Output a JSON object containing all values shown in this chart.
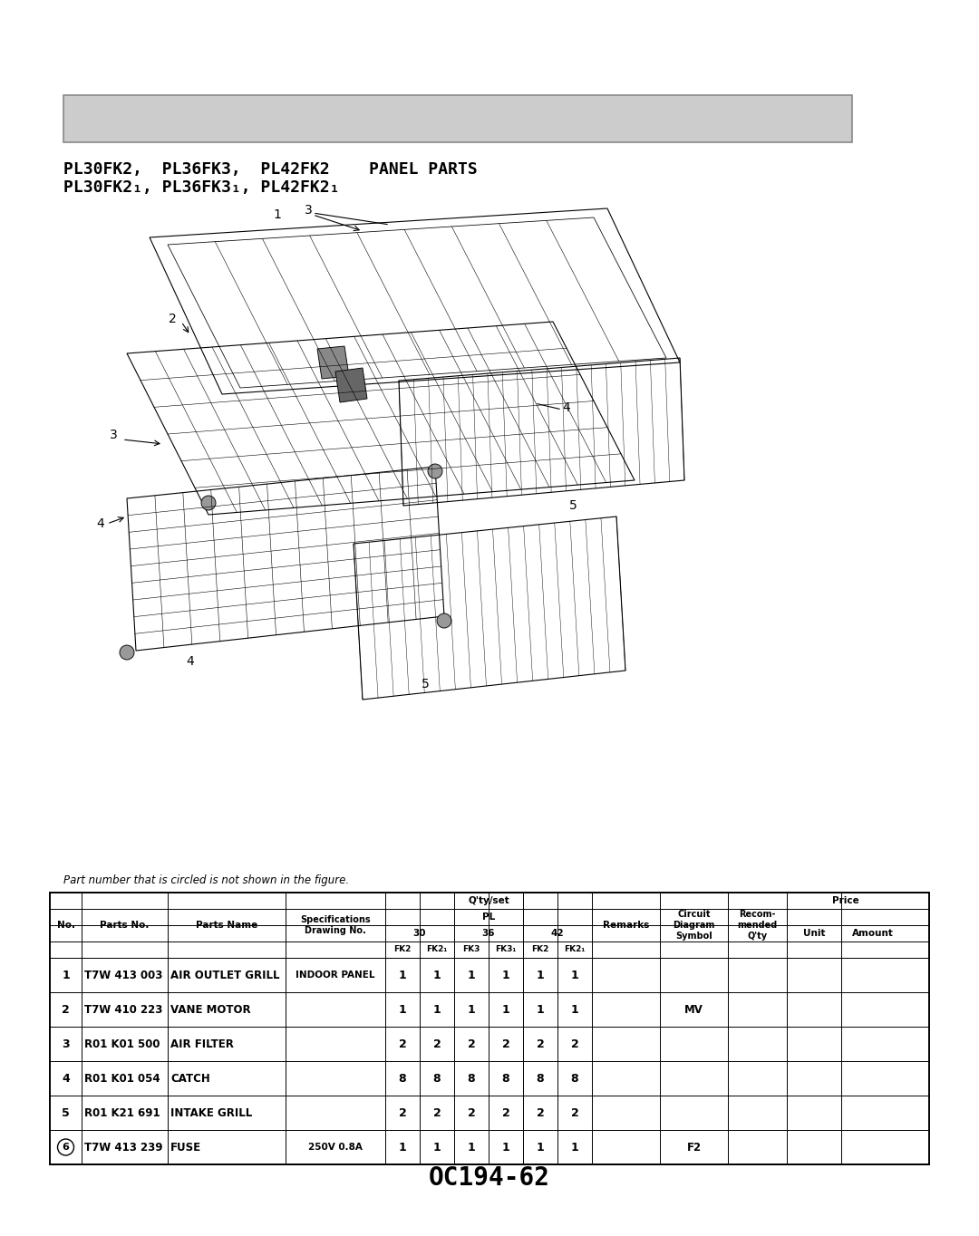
{
  "page_title_line1": "PL30FK2,  PL36FK3,  PL42FK2    PANEL PARTS",
  "page_title_line2": "PL30FK2₁, PL36FK3₁, PL42FK2₁",
  "footer_text": "OC194-62",
  "note_text": "Part number that is circled is not shown in the figure.",
  "header_bar_color": "#cccccc",
  "header_bar_border": "#888888",
  "bg_color": "#ffffff",
  "table_header_rows": [
    [
      "No.",
      "Parts No.",
      "Parts Name",
      "Specifications\nDrawing No.",
      "Q'ty/set\nPL\n30\nFK2|FK2₁",
      "",
      "36\nFK3|FK3₁",
      "",
      "42\nFK2|FK2₁",
      "",
      "Remarks",
      "Circuit\nDiagram\nSymbol",
      "Recom-\nmended\nQ'ty",
      "Price\nUnit",
      "Amount"
    ],
    [
      "",
      "",
      "",
      "",
      "FK2",
      "FK2₁",
      "FK3",
      "FK3₁",
      "FK2",
      "FK2₁",
      "",
      "",
      "",
      "",
      ""
    ]
  ],
  "col_headers": [
    "No.",
    "Parts No.",
    "Parts Name",
    "Specifications\nDrawing No.",
    "30\nFK2",
    "FK2₁",
    "36\nFK3",
    "FK3₁",
    "42\nFK2",
    "FK2₁",
    "Remarks",
    "Circuit\nDiagram\nSymbol",
    "Recom-\nmended\nQ'ty",
    "Unit",
    "Amount"
  ],
  "rows": [
    {
      "no": "1",
      "parts_no": "T7W 413 003",
      "parts_name": "AIR OUTLET GRILL",
      "spec": "INDOOR PANEL",
      "qty": [
        "1",
        "1",
        "1",
        "1",
        "1",
        "1"
      ],
      "remarks": "",
      "circuit": "",
      "recom": "",
      "unit": "",
      "amount": "",
      "circled": false
    },
    {
      "no": "2",
      "parts_no": "T7W 410 223",
      "parts_name": "VANE MOTOR",
      "spec": "",
      "qty": [
        "1",
        "1",
        "1",
        "1",
        "1",
        "1"
      ],
      "remarks": "",
      "circuit": "MV",
      "recom": "",
      "unit": "",
      "amount": "",
      "circled": false
    },
    {
      "no": "3",
      "parts_no": "R01 K01 500",
      "parts_name": "AIR FILTER",
      "spec": "",
      "qty": [
        "2",
        "2",
        "2",
        "2",
        "2",
        "2"
      ],
      "remarks": "",
      "circuit": "",
      "recom": "",
      "unit": "",
      "amount": "",
      "circled": false
    },
    {
      "no": "4",
      "parts_no": "R01 K01 054",
      "parts_name": "CATCH",
      "spec": "",
      "qty": [
        "8",
        "8",
        "8",
        "8",
        "8",
        "8"
      ],
      "remarks": "",
      "circuit": "",
      "recom": "",
      "unit": "",
      "amount": "",
      "circled": false
    },
    {
      "no": "5",
      "parts_no": "R01 K21 691",
      "parts_name": "INTAKE GRILL",
      "spec": "",
      "qty": [
        "2",
        "2",
        "2",
        "2",
        "2",
        "2"
      ],
      "remarks": "",
      "circuit": "",
      "recom": "",
      "unit": "",
      "amount": "",
      "circled": false
    },
    {
      "no": "6",
      "parts_no": "T7W 413 239",
      "parts_name": "FUSE",
      "spec": "250V 0.8A",
      "qty": [
        "1",
        "1",
        "1",
        "1",
        "1",
        "1"
      ],
      "remarks": "",
      "circuit": "F2",
      "recom": "",
      "unit": "",
      "amount": "",
      "circled": true
    }
  ]
}
